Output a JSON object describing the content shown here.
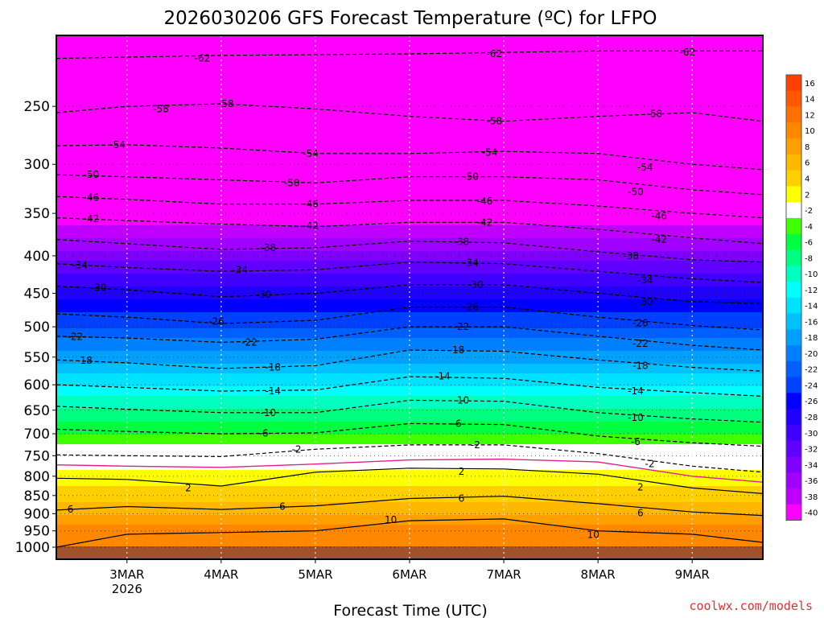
{
  "chart_data": {
    "type": "heatmap",
    "title": "2026030206 GFS Forecast Temperature (ºC) for LFPO",
    "xlabel": "Forecast Time (UTC)",
    "ylabel": "",
    "credit": "coolwx.com/models",
    "x_ticks": [
      {
        "label": "3MAR",
        "sub": "2026",
        "day": 3
      },
      {
        "label": "4MAR",
        "sub": "",
        "day": 4
      },
      {
        "label": "5MAR",
        "sub": "",
        "day": 5
      },
      {
        "label": "6MAR",
        "sub": "",
        "day": 6
      },
      {
        "label": "7MAR",
        "sub": "",
        "day": 7
      },
      {
        "label": "8MAR",
        "sub": "",
        "day": 8
      },
      {
        "label": "9MAR",
        "sub": "",
        "day": 9
      }
    ],
    "xlim": [
      2.25,
      9.75
    ],
    "y_ticks": [
      250,
      300,
      350,
      400,
      450,
      500,
      550,
      600,
      650,
      700,
      750,
      800,
      850,
      900,
      950,
      1000
    ],
    "ylim": [
      1020,
      200
    ],
    "y_scale": "log",
    "colorbar": {
      "labels": [
        16,
        14,
        12,
        10,
        8,
        6,
        4,
        2,
        -2,
        -4,
        -6,
        -8,
        -10,
        -12,
        -14,
        -16,
        -18,
        -20,
        -22,
        -24,
        -26,
        -28,
        -30,
        -32,
        -34,
        -36,
        -38,
        -40
      ],
      "colors": [
        "#ff4000",
        "#ff5800",
        "#ff7000",
        "#ff8800",
        "#ffa000",
        "#ffb800",
        "#ffd000",
        "#ffff00",
        "#ffffff",
        "#40ff00",
        "#00ff40",
        "#00ff80",
        "#00ffc0",
        "#00ffff",
        "#00e0ff",
        "#00c0ff",
        "#00a0ff",
        "#0080ff",
        "#0060ff",
        "#0040ff",
        "#0000ff",
        "#2000ff",
        "#4000ff",
        "#6000ff",
        "#8000ff",
        "#a000ff",
        "#c000ff",
        "#ff00ff"
      ]
    },
    "profile": [
      {
        "p": 1000,
        "t": 12
      },
      {
        "p": 950,
        "t": 11
      },
      {
        "p": 900,
        "t": 8
      },
      {
        "p": 850,
        "t": 5
      },
      {
        "p": 800,
        "t": 3
      },
      {
        "p": 750,
        "t": 0
      },
      {
        "p": 700,
        "t": -4
      },
      {
        "p": 650,
        "t": -8
      },
      {
        "p": 600,
        "t": -12
      },
      {
        "p": 550,
        "t": -17
      },
      {
        "p": 500,
        "t": -22
      },
      {
        "p": 450,
        "t": -27
      },
      {
        "p": 400,
        "t": -33
      },
      {
        "p": 350,
        "t": -40
      },
      {
        "p": 300,
        "t": -48
      },
      {
        "p": 250,
        "t": -57
      },
      {
        "p": 200,
        "t": -62
      }
    ],
    "contours": [
      {
        "value": -62,
        "style": "dashed",
        "points": [
          [
            2.25,
            215
          ],
          [
            4,
            213
          ],
          [
            6,
            212
          ],
          [
            8,
            210
          ],
          [
            9.75,
            210
          ]
        ],
        "labels": [
          [
            3.8,
            215
          ],
          [
            6.9,
            212
          ],
          [
            8.95,
            211
          ]
        ]
      },
      {
        "value": -58,
        "style": "dashed",
        "points": [
          [
            2.25,
            255
          ],
          [
            3,
            250
          ],
          [
            4,
            248
          ],
          [
            5,
            252
          ],
          [
            6,
            258
          ],
          [
            7,
            262
          ],
          [
            8,
            258
          ],
          [
            9,
            255
          ],
          [
            9.75,
            262
          ]
        ],
        "labels": [
          [
            3.36,
            252
          ],
          [
            4.05,
            248
          ],
          [
            6.9,
            262
          ],
          [
            8.6,
            256
          ]
        ]
      },
      {
        "value": -54,
        "style": "dashed",
        "points": [
          [
            2.25,
            283
          ],
          [
            3,
            282
          ],
          [
            4,
            285
          ],
          [
            5,
            290
          ],
          [
            6,
            290
          ],
          [
            7,
            288
          ],
          [
            8,
            290
          ],
          [
            9,
            300
          ],
          [
            9.75,
            305
          ]
        ],
        "labels": [
          [
            2.9,
            282
          ],
          [
            4.95,
            290
          ],
          [
            6.85,
            289
          ],
          [
            8.5,
            303
          ]
        ]
      },
      {
        "value": -50,
        "style": "dashed",
        "points": [
          [
            2.25,
            310
          ],
          [
            3,
            312
          ],
          [
            4,
            315
          ],
          [
            5,
            318
          ],
          [
            6,
            312
          ],
          [
            7,
            312
          ],
          [
            8,
            315
          ],
          [
            9,
            325
          ],
          [
            9.75,
            330
          ]
        ],
        "labels": [
          [
            2.62,
            310
          ],
          [
            4.75,
            318
          ],
          [
            6.65,
            312
          ],
          [
            8.4,
            327
          ]
        ]
      },
      {
        "value": -46,
        "style": "dashed",
        "points": [
          [
            2.25,
            332
          ],
          [
            3,
            335
          ],
          [
            4,
            340
          ],
          [
            5,
            340
          ],
          [
            6,
            336
          ],
          [
            7,
            336
          ],
          [
            8,
            342
          ],
          [
            9,
            350
          ],
          [
            9.75,
            355
          ]
        ],
        "labels": [
          [
            2.62,
            333
          ],
          [
            4.95,
            340
          ],
          [
            6.8,
            337
          ],
          [
            8.65,
            353
          ]
        ]
      },
      {
        "value": -42,
        "style": "dashed",
        "points": [
          [
            2.25,
            355
          ],
          [
            3,
            358
          ],
          [
            4,
            362
          ],
          [
            5,
            365
          ],
          [
            6,
            360
          ],
          [
            7,
            360
          ],
          [
            8,
            368
          ],
          [
            9,
            378
          ],
          [
            9.75,
            385
          ]
        ],
        "labels": [
          [
            2.62,
            356
          ],
          [
            4.95,
            364
          ],
          [
            6.8,
            360
          ],
          [
            8.65,
            380
          ]
        ]
      },
      {
        "value": -38,
        "style": "dashed",
        "points": [
          [
            2.25,
            380
          ],
          [
            3,
            385
          ],
          [
            4,
            392
          ],
          [
            5,
            390
          ],
          [
            6,
            382
          ],
          [
            7,
            384
          ],
          [
            8,
            395
          ],
          [
            9,
            405
          ],
          [
            9.75,
            408
          ]
        ],
        "labels": [
          [
            4.5,
            390
          ],
          [
            6.55,
            383
          ],
          [
            8.35,
            400
          ]
        ]
      },
      {
        "value": -34,
        "style": "dashed",
        "points": [
          [
            2.25,
            410
          ],
          [
            3,
            415
          ],
          [
            4,
            420
          ],
          [
            5,
            418
          ],
          [
            6,
            408
          ],
          [
            7,
            410
          ],
          [
            8,
            420
          ],
          [
            9,
            430
          ],
          [
            9.75,
            435
          ]
        ],
        "labels": [
          [
            2.5,
            412
          ],
          [
            4.2,
            418
          ],
          [
            6.65,
            409
          ],
          [
            8.5,
            432
          ]
        ]
      },
      {
        "value": -30,
        "style": "dashed",
        "points": [
          [
            2.25,
            440
          ],
          [
            3,
            445
          ],
          [
            4,
            455
          ],
          [
            5,
            450
          ],
          [
            6,
            438
          ],
          [
            7,
            438
          ],
          [
            8,
            450
          ],
          [
            9,
            462
          ],
          [
            9.75,
            465
          ]
        ],
        "labels": [
          [
            2.7,
            442
          ],
          [
            4.45,
            452
          ],
          [
            6.7,
            438
          ],
          [
            8.5,
            462
          ]
        ]
      },
      {
        "value": -26,
        "style": "dashed",
        "points": [
          [
            2.25,
            480
          ],
          [
            3,
            485
          ],
          [
            4,
            495
          ],
          [
            5,
            490
          ],
          [
            6,
            470
          ],
          [
            7,
            470
          ],
          [
            8,
            485
          ],
          [
            9,
            498
          ],
          [
            9.75,
            505
          ]
        ],
        "labels": [
          [
            3.95,
            492
          ],
          [
            6.65,
            470
          ],
          [
            8.45,
            494
          ]
        ]
      },
      {
        "value": -22,
        "style": "dashed",
        "points": [
          [
            2.25,
            515
          ],
          [
            3,
            518
          ],
          [
            4,
            525
          ],
          [
            5,
            520
          ],
          [
            6,
            500
          ],
          [
            7,
            500
          ],
          [
            8,
            515
          ],
          [
            9,
            530
          ],
          [
            9.75,
            538
          ]
        ],
        "labels": [
          [
            2.45,
            516
          ],
          [
            4.3,
            525
          ],
          [
            6.55,
            500
          ],
          [
            8.45,
            527
          ]
        ]
      },
      {
        "value": -18,
        "style": "dashed",
        "points": [
          [
            2.25,
            555
          ],
          [
            3,
            560
          ],
          [
            4,
            570
          ],
          [
            5,
            565
          ],
          [
            6,
            538
          ],
          [
            7,
            540
          ],
          [
            8,
            555
          ],
          [
            9,
            568
          ],
          [
            9.75,
            575
          ]
        ],
        "labels": [
          [
            2.55,
            556
          ],
          [
            4.55,
            568
          ],
          [
            6.5,
            538
          ],
          [
            8.45,
            565
          ]
        ]
      },
      {
        "value": -14,
        "style": "dashed",
        "points": [
          [
            2.25,
            600
          ],
          [
            3,
            605
          ],
          [
            4,
            612
          ],
          [
            5,
            610
          ],
          [
            6,
            585
          ],
          [
            7,
            588
          ],
          [
            8,
            605
          ],
          [
            9,
            615
          ],
          [
            9.75,
            622
          ]
        ],
        "labels": [
          [
            4.55,
            612
          ],
          [
            6.35,
            584
          ],
          [
            8.4,
            612
          ]
        ]
      },
      {
        "value": -10,
        "style": "dashed",
        "points": [
          [
            2.25,
            642
          ],
          [
            3,
            648
          ],
          [
            4,
            655
          ],
          [
            5,
            655
          ],
          [
            6,
            630
          ],
          [
            7,
            632
          ],
          [
            8,
            655
          ],
          [
            9,
            668
          ],
          [
            9.75,
            675
          ]
        ],
        "labels": [
          [
            4.5,
            655
          ],
          [
            6.55,
            630
          ],
          [
            8.4,
            665
          ]
        ]
      },
      {
        "value": -6,
        "style": "dashed",
        "points": [
          [
            2.25,
            690
          ],
          [
            3,
            695
          ],
          [
            4,
            700
          ],
          [
            5,
            698
          ],
          [
            6,
            678
          ],
          [
            7,
            680
          ],
          [
            8,
            705
          ],
          [
            9,
            720
          ],
          [
            9.75,
            728
          ]
        ],
        "labels": [
          [
            4.45,
            699
          ],
          [
            6.5,
            678
          ],
          [
            8.4,
            718
          ]
        ]
      },
      {
        "value": -2,
        "style": "dashed",
        "points": [
          [
            2.25,
            748
          ],
          [
            3,
            750
          ],
          [
            4,
            752
          ],
          [
            5,
            735
          ],
          [
            6,
            725
          ],
          [
            7,
            725
          ],
          [
            8,
            745
          ],
          [
            9,
            775
          ],
          [
            9.75,
            790
          ]
        ],
        "labels": [
          [
            4.8,
            735
          ],
          [
            6.7,
            725
          ],
          [
            8.55,
            770
          ]
        ]
      },
      {
        "value": 0,
        "style": "magenta",
        "points": [
          [
            2.25,
            772
          ],
          [
            3,
            775
          ],
          [
            4,
            778
          ],
          [
            5,
            770
          ],
          [
            6,
            760
          ],
          [
            7,
            758
          ],
          [
            8,
            765
          ],
          [
            9,
            800
          ],
          [
            9.75,
            815
          ]
        ],
        "labels": []
      },
      {
        "value": 2,
        "style": "solid",
        "points": [
          [
            2.25,
            805
          ],
          [
            3,
            808
          ],
          [
            4,
            825
          ],
          [
            5,
            790
          ],
          [
            6,
            780
          ],
          [
            7,
            782
          ],
          [
            8,
            795
          ],
          [
            9,
            830
          ],
          [
            9.75,
            845
          ]
        ],
        "labels": [
          [
            3.65,
            830
          ],
          [
            6.55,
            788
          ],
          [
            8.45,
            828
          ]
        ]
      },
      {
        "value": 6,
        "style": "solid",
        "points": [
          [
            2.25,
            890
          ],
          [
            3,
            880
          ],
          [
            4,
            888
          ],
          [
            5,
            878
          ],
          [
            6,
            858
          ],
          [
            7,
            852
          ],
          [
            8,
            872
          ],
          [
            9,
            895
          ],
          [
            9.75,
            905
          ]
        ],
        "labels": [
          [
            2.4,
            888
          ],
          [
            4.65,
            880
          ],
          [
            6.55,
            858
          ],
          [
            8.45,
            898
          ]
        ]
      },
      {
        "value": 10,
        "style": "solid",
        "points": [
          [
            2.25,
            1000
          ],
          [
            3,
            960
          ],
          [
            4,
            955
          ],
          [
            5,
            950
          ],
          [
            6,
            920
          ],
          [
            7,
            915
          ],
          [
            8,
            950
          ],
          [
            9,
            960
          ],
          [
            9.75,
            985
          ]
        ],
        "labels": [
          [
            5.8,
            918
          ],
          [
            7.95,
            962
          ]
        ]
      }
    ]
  }
}
